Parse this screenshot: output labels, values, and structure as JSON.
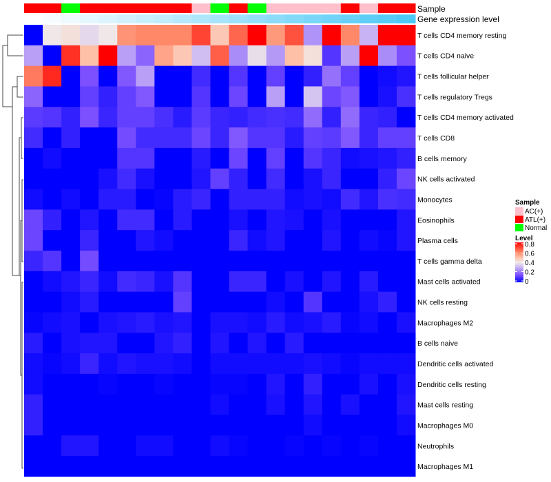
{
  "chart_data": {
    "type": "heatmap",
    "title": "",
    "annotation_rows": [
      "Sample",
      "Gene expression level"
    ],
    "sample_groups": [
      "ATL(+)",
      "ATL(+)",
      "Normal",
      "ATL(+)",
      "ATL(+)",
      "ATL(+)",
      "ATL(+)",
      "ATL(+)",
      "ATL(+)",
      "AC(+)",
      "Normal",
      "ATL(+)",
      "Normal",
      "AC(+)",
      "AC(+)",
      "AC(+)",
      "AC(+)",
      "ATL(+)",
      "AC(+)",
      "ATL(+)",
      "ATL(+)"
    ],
    "gene_expression_level": [
      0,
      0.05,
      0.1,
      0.15,
      0.2,
      0.25,
      0.3,
      0.35,
      0.4,
      0.45,
      0.5,
      0.55,
      0.6,
      0.65,
      0.7,
      0.75,
      0.8,
      0.85,
      0.9,
      0.95,
      1.0
    ],
    "rows": [
      {
        "label": "T cells CD4 memory resting",
        "values": [
          0,
          0.4,
          0.42,
          0.37,
          0.4,
          0.58,
          0.6,
          0.6,
          0.6,
          0.7,
          0.48,
          0.65,
          0.8,
          0.57,
          0.68,
          0.25,
          0.8,
          0.6,
          0.3,
          0.8,
          0.8
        ]
      },
      {
        "label": "T cells CD4 naive",
        "values": [
          0.27,
          0,
          0.73,
          0.5,
          0.8,
          0.27,
          0.18,
          0.55,
          0.48,
          0.32,
          0.66,
          0.24,
          0.38,
          0.26,
          0.5,
          0.42,
          0.1,
          0.27,
          0.8,
          0.24,
          0.15
        ]
      },
      {
        "label": "T cells follicular helper",
        "values": [
          0.62,
          0.74,
          0,
          0.15,
          0,
          0.16,
          0.27,
          0,
          0,
          0.08,
          0,
          0.1,
          0,
          0.12,
          0,
          0.06,
          0.2,
          0.12,
          0,
          0.02,
          0.04
        ]
      },
      {
        "label": "T cells regulatory  Tregs",
        "values": [
          0.18,
          0,
          0,
          0.12,
          0.06,
          0.12,
          0.16,
          0,
          0,
          0.1,
          0,
          0.13,
          0,
          0.27,
          0,
          0.33,
          0.13,
          0.16,
          0,
          0.03,
          0.09
        ]
      },
      {
        "label": "T cells CD4 memory activated",
        "values": [
          0.11,
          0.1,
          0.06,
          0.15,
          0.07,
          0.12,
          0.12,
          0.09,
          0.05,
          0.11,
          0.07,
          0.06,
          0.08,
          0.09,
          0.08,
          0.19,
          0.06,
          0.19,
          0.07,
          0.06,
          0
        ]
      },
      {
        "label": "T cells CD8",
        "values": [
          0.08,
          0,
          0.06,
          0,
          0,
          0.14,
          0.08,
          0.08,
          0.08,
          0.13,
          0.07,
          0.16,
          0.1,
          0.1,
          0.05,
          0.12,
          0.11,
          0.16,
          0.07,
          0.12,
          0.12
        ]
      },
      {
        "label": "B cells memory",
        "values": [
          0,
          0.02,
          0,
          0,
          0,
          0.1,
          0.1,
          0,
          0,
          0.05,
          0,
          0.13,
          0,
          0.12,
          0,
          0.1,
          0.07,
          0.02,
          0.03,
          0.04,
          0.06
        ]
      },
      {
        "label": "NK cells activated",
        "values": [
          0,
          0,
          0,
          0,
          0.03,
          0.08,
          0.03,
          0,
          0,
          0.04,
          0.12,
          0.06,
          0,
          0.08,
          0,
          0.03,
          0.07,
          0,
          0,
          0.06,
          0.13
        ]
      },
      {
        "label": "Monocytes",
        "values": [
          0.02,
          0,
          0.02,
          0,
          0.05,
          0.05,
          0,
          0.01,
          0.05,
          0.07,
          0,
          0.06,
          0.06,
          0.06,
          0.02,
          0.03,
          0.02,
          0.08,
          0.04,
          0.09,
          0.08
        ]
      },
      {
        "label": "Eosinophils",
        "values": [
          0.13,
          0.06,
          0,
          0.04,
          0,
          0.08,
          0.08,
          0,
          0.05,
          0,
          0,
          0.03,
          0,
          0.04,
          0.03,
          0,
          0.03,
          0,
          0,
          0,
          0.04
        ]
      },
      {
        "label": "Plasma cells",
        "values": [
          0.13,
          0,
          0,
          0.07,
          0,
          0,
          0.04,
          0.02,
          0,
          0,
          0,
          0.07,
          0.02,
          0.04,
          0,
          0,
          0.04,
          0,
          0.02,
          0.01,
          0.04
        ]
      },
      {
        "label": "T cells gamma delta",
        "values": [
          0.07,
          0.1,
          0,
          0.14,
          0,
          0,
          0,
          0,
          0,
          0,
          0,
          0,
          0,
          0,
          0,
          0,
          0,
          0,
          0,
          0,
          0
        ]
      },
      {
        "label": "Mast cells activated",
        "values": [
          0,
          0.02,
          0.04,
          0.07,
          0.02,
          0.08,
          0.07,
          0.03,
          0.1,
          0,
          0,
          0.07,
          0.07,
          0,
          0.03,
          0,
          0.04,
          0,
          0.05,
          0,
          0
        ]
      },
      {
        "label": "NK cells resting",
        "values": [
          0,
          0,
          0.02,
          0.05,
          0,
          0,
          0,
          0,
          0.12,
          0,
          0,
          0,
          0,
          0.02,
          0,
          0.1,
          0,
          0,
          0.03,
          0.06,
          0
        ]
      },
      {
        "label": "Macrophages M2",
        "values": [
          0.01,
          0.02,
          0.03,
          0,
          0.03,
          0.04,
          0.05,
          0.03,
          0.04,
          0,
          0.03,
          0.03,
          0.02,
          0.05,
          0.02,
          0.03,
          0.05,
          0.01,
          0.02,
          0,
          0.03
        ]
      },
      {
        "label": "B cells naive",
        "values": [
          0.05,
          0,
          0.03,
          0.04,
          0.04,
          0,
          0,
          0.04,
          0.06,
          0,
          0.04,
          0,
          0.04,
          0,
          0.05,
          0,
          0,
          0,
          0,
          0,
          0
        ]
      },
      {
        "label": "Dendritic cells activated",
        "values": [
          0.02,
          0.01,
          0.02,
          0.07,
          0.02,
          0.04,
          0.03,
          0.03,
          0.02,
          0,
          0.02,
          0.02,
          0.02,
          0.02,
          0.02,
          0.03,
          0.02,
          0.01,
          0.02,
          0.02,
          0.02
        ]
      },
      {
        "label": "Dendritic cells resting",
        "values": [
          0.02,
          0,
          0,
          0,
          0.01,
          0,
          0,
          0.01,
          0,
          0,
          0.01,
          0.01,
          0,
          0.04,
          0,
          0.06,
          0,
          0,
          0.03,
          0,
          0.03
        ]
      },
      {
        "label": "Mast cells resting",
        "values": [
          0.06,
          0,
          0,
          0,
          0,
          0,
          0,
          0,
          0,
          0,
          0.02,
          0,
          0,
          0.03,
          0,
          0.04,
          0,
          0.03,
          0,
          0,
          0.04
        ]
      },
      {
        "label": "Macrophages M0",
        "values": [
          0.06,
          0,
          0,
          0,
          0,
          0,
          0,
          0,
          0,
          0,
          0,
          0,
          0,
          0,
          0,
          0.02,
          0,
          0,
          0,
          0,
          0.02
        ]
      },
      {
        "label": "Neutrophils",
        "values": [
          0,
          0,
          0.04,
          0.04,
          0,
          0,
          0.02,
          0.02,
          0,
          0,
          0.02,
          0.01,
          0,
          0,
          0.01,
          0,
          0.01,
          0,
          0.01,
          0,
          0
        ]
      },
      {
        "label": "Macrophages M1",
        "values": [
          0,
          0,
          0,
          0,
          0,
          0,
          0,
          0,
          0,
          0,
          0,
          0,
          0,
          0,
          0,
          0,
          0,
          0,
          0,
          0,
          0
        ]
      }
    ],
    "color_range": [
      0,
      0.8
    ],
    "color_stops": [
      [
        0,
        "#0000FF"
      ],
      [
        0.15,
        "#7C50FF"
      ],
      [
        0.3,
        "#C8B4F4"
      ],
      [
        0.4,
        "#F0E8E8"
      ],
      [
        0.5,
        "#FFC0A8"
      ],
      [
        0.6,
        "#FF8868"
      ],
      [
        0.8,
        "#FF0000"
      ]
    ],
    "gene_level_colors": [
      "#FFFFFF",
      "#4CC8F5"
    ],
    "legend": {
      "sample_title": "Sample",
      "sample_items": [
        {
          "label": "AC(+)",
          "color": "#FFC0CB"
        },
        {
          "label": "ATL(+)",
          "color": "#FF0000"
        },
        {
          "label": "Normal",
          "color": "#00FF00"
        }
      ],
      "level_title": "Level",
      "level_ticks": [
        "0.8",
        "0.6",
        "0.4",
        "0.2",
        "0"
      ],
      "placement": "right"
    }
  }
}
